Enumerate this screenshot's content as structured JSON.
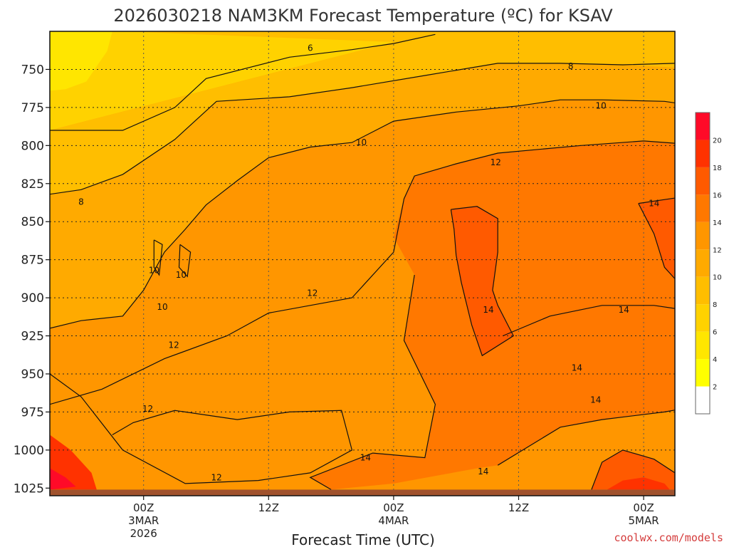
{
  "chart_data": {
    "type": "contour",
    "title": "2026030218 NAM3KM Forecast Temperature (ºC) for KSAV",
    "xlabel": "Forecast Time (UTC)",
    "ylabel": "",
    "credit": "coolwx.com/models",
    "y_axis": {
      "units": "hPa",
      "range": [
        725,
        1030
      ],
      "ticks": [
        750,
        775,
        800,
        825,
        850,
        875,
        900,
        925,
        950,
        975,
        1000,
        1025
      ],
      "tick_labels": [
        "750",
        "775",
        "800",
        "825",
        "850",
        "875",
        "900",
        "925",
        "950",
        "975",
        "1000",
        "1025"
      ]
    },
    "x_axis": {
      "units": "hours since 2026-03-02 18Z",
      "range": [
        -3,
        57
      ],
      "ticks": [
        {
          "hour": 6,
          "label": "00Z",
          "sub": "3MAR",
          "sub2": "2026"
        },
        {
          "hour": 18,
          "label": "12Z",
          "sub": "",
          "sub2": ""
        },
        {
          "hour": 30,
          "label": "00Z",
          "sub": "4MAR",
          "sub2": ""
        },
        {
          "hour": 42,
          "label": "12Z",
          "sub": "",
          "sub2": ""
        },
        {
          "hour": 54,
          "label": "00Z",
          "sub": "5MAR",
          "sub2": ""
        }
      ]
    },
    "ground_level_hpa": 1026,
    "ground_color": "#a0522d",
    "colorbar": {
      "levels": [
        0,
        2,
        4,
        6,
        8,
        10,
        12,
        14,
        16,
        18,
        20,
        22
      ],
      "labels": [
        "2",
        "4",
        "6",
        "8",
        "10",
        "12",
        "14",
        "16",
        "18",
        "20"
      ],
      "colors": [
        "#ffffff",
        "#ffff00",
        "#ffe600",
        "#ffd200",
        "#ffbe00",
        "#ffaa00",
        "#ff9600",
        "#ff7800",
        "#ff5a00",
        "#ff3200",
        "#ff0a28"
      ]
    },
    "fill_regions": [
      {
        "band": "6-8",
        "color": "#ffd200"
      },
      {
        "band": "4-6",
        "color": "#ffe600"
      },
      {
        "band": "8-10",
        "color": "#ffbe00"
      },
      {
        "band": "10-12",
        "color": "#ffaa00"
      },
      {
        "band": "12-14",
        "color": "#ff9600"
      },
      {
        "band": "14-16",
        "color": "#ff7800"
      },
      {
        "band": "16-18",
        "color": "#ff5a00"
      },
      {
        "band": "18-20",
        "color": "#ff3200"
      },
      {
        "band": "20-22",
        "color": "#ff0a28"
      }
    ],
    "contour_labels": [
      {
        "text": "6",
        "hour": 22.0,
        "p": 736
      },
      {
        "text": "8",
        "hour": 47.0,
        "p": 748
      },
      {
        "text": "10",
        "hour": 49.9,
        "p": 774
      },
      {
        "text": "10",
        "hour": 26.9,
        "p": 798
      },
      {
        "text": "12",
        "hour": 39.8,
        "p": 811
      },
      {
        "text": "14",
        "hour": 55.0,
        "p": 838
      },
      {
        "text": "8",
        "hour": 0.0,
        "p": 837
      },
      {
        "text": "10",
        "hour": 7.0,
        "p": 882
      },
      {
        "text": "10",
        "hour": 9.6,
        "p": 885
      },
      {
        "text": "10",
        "hour": 7.8,
        "p": 906
      },
      {
        "text": "12",
        "hour": 22.2,
        "p": 897
      },
      {
        "text": "14",
        "hour": 39.1,
        "p": 908
      },
      {
        "text": "14",
        "hour": 52.1,
        "p": 908
      },
      {
        "text": "12",
        "hour": 8.9,
        "p": 931
      },
      {
        "text": "14",
        "hour": 47.6,
        "p": 946
      },
      {
        "text": "12",
        "hour": 6.4,
        "p": 973
      },
      {
        "text": "14",
        "hour": 49.4,
        "p": 967
      },
      {
        "text": "14",
        "hour": 27.3,
        "p": 1005
      },
      {
        "text": "14",
        "hour": 38.6,
        "p": 1014
      },
      {
        "text": "12",
        "hour": 13.0,
        "p": 1018
      }
    ]
  }
}
